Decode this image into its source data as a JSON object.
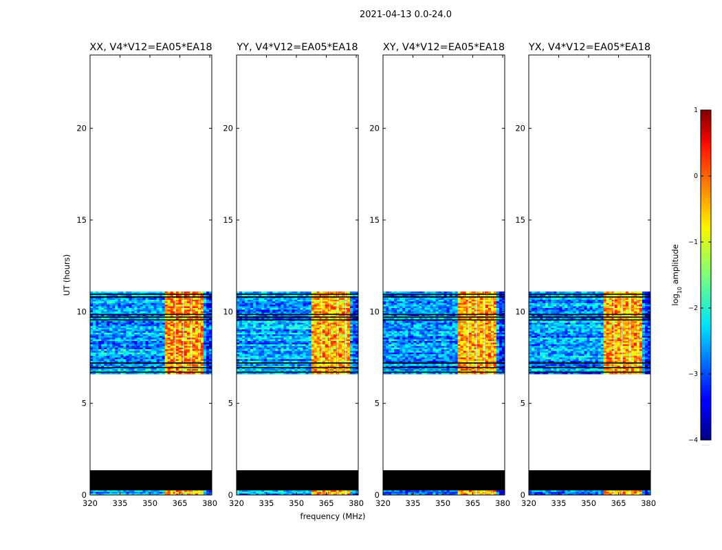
{
  "figure": {
    "suptitle": "2021-04-13 0.0-24.0",
    "xlabel": "frequency (MHz)",
    "ylabel": "UT (hours)",
    "colorbar_label_prefix": "log",
    "colorbar_label_sub": "10",
    "colorbar_label_suffix": " amplitude",
    "colorbar_footer": "......"
  },
  "chart_data": {
    "type": "heatmap",
    "suptitle": "2021-04-13 0.0-24.0",
    "xlabel": "frequency (MHz)",
    "ylabel": "UT (hours)",
    "xlim": [
      320,
      381
    ],
    "ylim": [
      0,
      24
    ],
    "xticks": [
      320,
      335,
      350,
      365,
      380
    ],
    "yticks": [
      0,
      5,
      10,
      15,
      20
    ],
    "colorbar": {
      "label": "log10 amplitude",
      "min": -4,
      "max": 1,
      "ticks": [
        -4,
        -3,
        -2,
        -1,
        0,
        1
      ],
      "tick_labels": [
        "−4",
        "−3",
        "−2",
        "−1",
        "0",
        "1"
      ],
      "colormap": "jet"
    },
    "panels": [
      {
        "title": "XX, V4*V12=EA05*EA18",
        "rfi_band_mhz": [
          358,
          377
        ],
        "peak_log_amplitude": 0.3
      },
      {
        "title": "YY, V4*V12=EA05*EA18",
        "rfi_band_mhz": [
          358,
          377
        ],
        "peak_log_amplitude": -0.2
      },
      {
        "title": "XY, V4*V12=EA05*EA18",
        "rfi_band_mhz": [
          358,
          377
        ],
        "peak_log_amplitude": -0.3
      },
      {
        "title": "YX, V4*V12=EA05*EA18",
        "rfi_band_mhz": [
          358,
          377
        ],
        "peak_log_amplitude": -0.3
      }
    ],
    "data_segments_hours": [
      [
        0.0,
        0.25
      ],
      [
        6.6,
        11.1
      ]
    ],
    "flagged_black_hours": [
      [
        0.25,
        1.35
      ]
    ],
    "flagged_black_lines_hours": [
      6.7,
      6.95,
      7.2,
      9.55,
      9.7,
      9.85,
      10.8,
      10.95
    ],
    "background_log_amplitude": -2.6,
    "band_log_amplitude": -1.0
  }
}
